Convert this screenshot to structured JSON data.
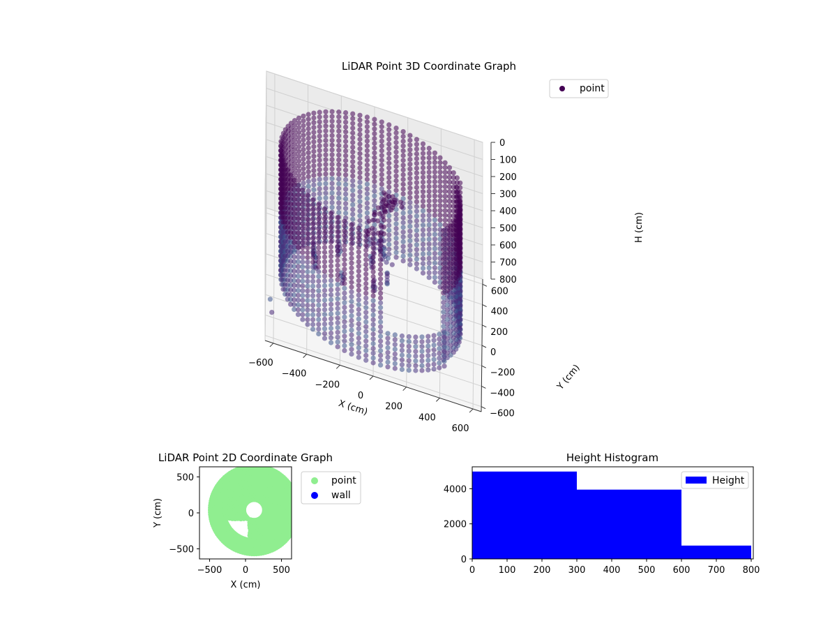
{
  "chart_data": [
    {
      "type": "scatter",
      "title": "LiDAR Point 3D Coordinate Graph",
      "xlabel": "X (cm)",
      "ylabel": "Y (cm)",
      "zlabel": "H (cm)",
      "xlim": [
        -650,
        650
      ],
      "ylim": [
        -650,
        650
      ],
      "zlim": [
        800,
        0
      ],
      "xticks": [
        -600,
        -400,
        -200,
        0,
        200,
        400,
        600
      ],
      "yticks": [
        -600,
        -400,
        -200,
        0,
        200,
        400,
        600
      ],
      "zticks": [
        0,
        100,
        200,
        300,
        400,
        500,
        600,
        700,
        800
      ],
      "series": [
        {
          "name": "point",
          "color": "#440154",
          "description_points": {
            "wall_ring_radius": 560,
            "wall_gap_from_deg": -85,
            "wall_gap_to_deg": -40,
            "outliers": [
              [
                -620,
                -480,
                650
              ],
              [
                -610,
                -520,
                700
              ]
            ]
          }
        }
      ],
      "legend": "top-right",
      "grid": true
    },
    {
      "type": "scatter",
      "title": "LiDAR Point 2D Coordinate Graph",
      "xlabel": "X (cm)",
      "ylabel": "Y (cm)",
      "xlim": [
        -640,
        640
      ],
      "ylim": [
        -640,
        640
      ],
      "xticks": [
        -500,
        0,
        500
      ],
      "yticks": [
        -500,
        0,
        500
      ],
      "series": [
        {
          "name": "point",
          "color": "#90ee90"
        },
        {
          "name": "wall",
          "color": "#0000ff"
        }
      ],
      "legend": "outside-right",
      "grid": false
    },
    {
      "type": "bar",
      "title": "Height Histogram",
      "xlabel": "",
      "ylabel": "",
      "bins": [
        [
          0,
          300
        ],
        [
          300,
          600
        ],
        [
          600,
          800
        ]
      ],
      "values": [
        4980,
        3950,
        760
      ],
      "xlim": [
        0,
        806
      ],
      "ylim": [
        0,
        5250
      ],
      "xticks": [
        0,
        100,
        200,
        300,
        400,
        500,
        600,
        700,
        800
      ],
      "yticks": [
        0,
        2000,
        4000
      ],
      "series": [
        {
          "name": "Height",
          "color": "#0000ff"
        }
      ],
      "legend": "top-right",
      "grid": false
    }
  ]
}
